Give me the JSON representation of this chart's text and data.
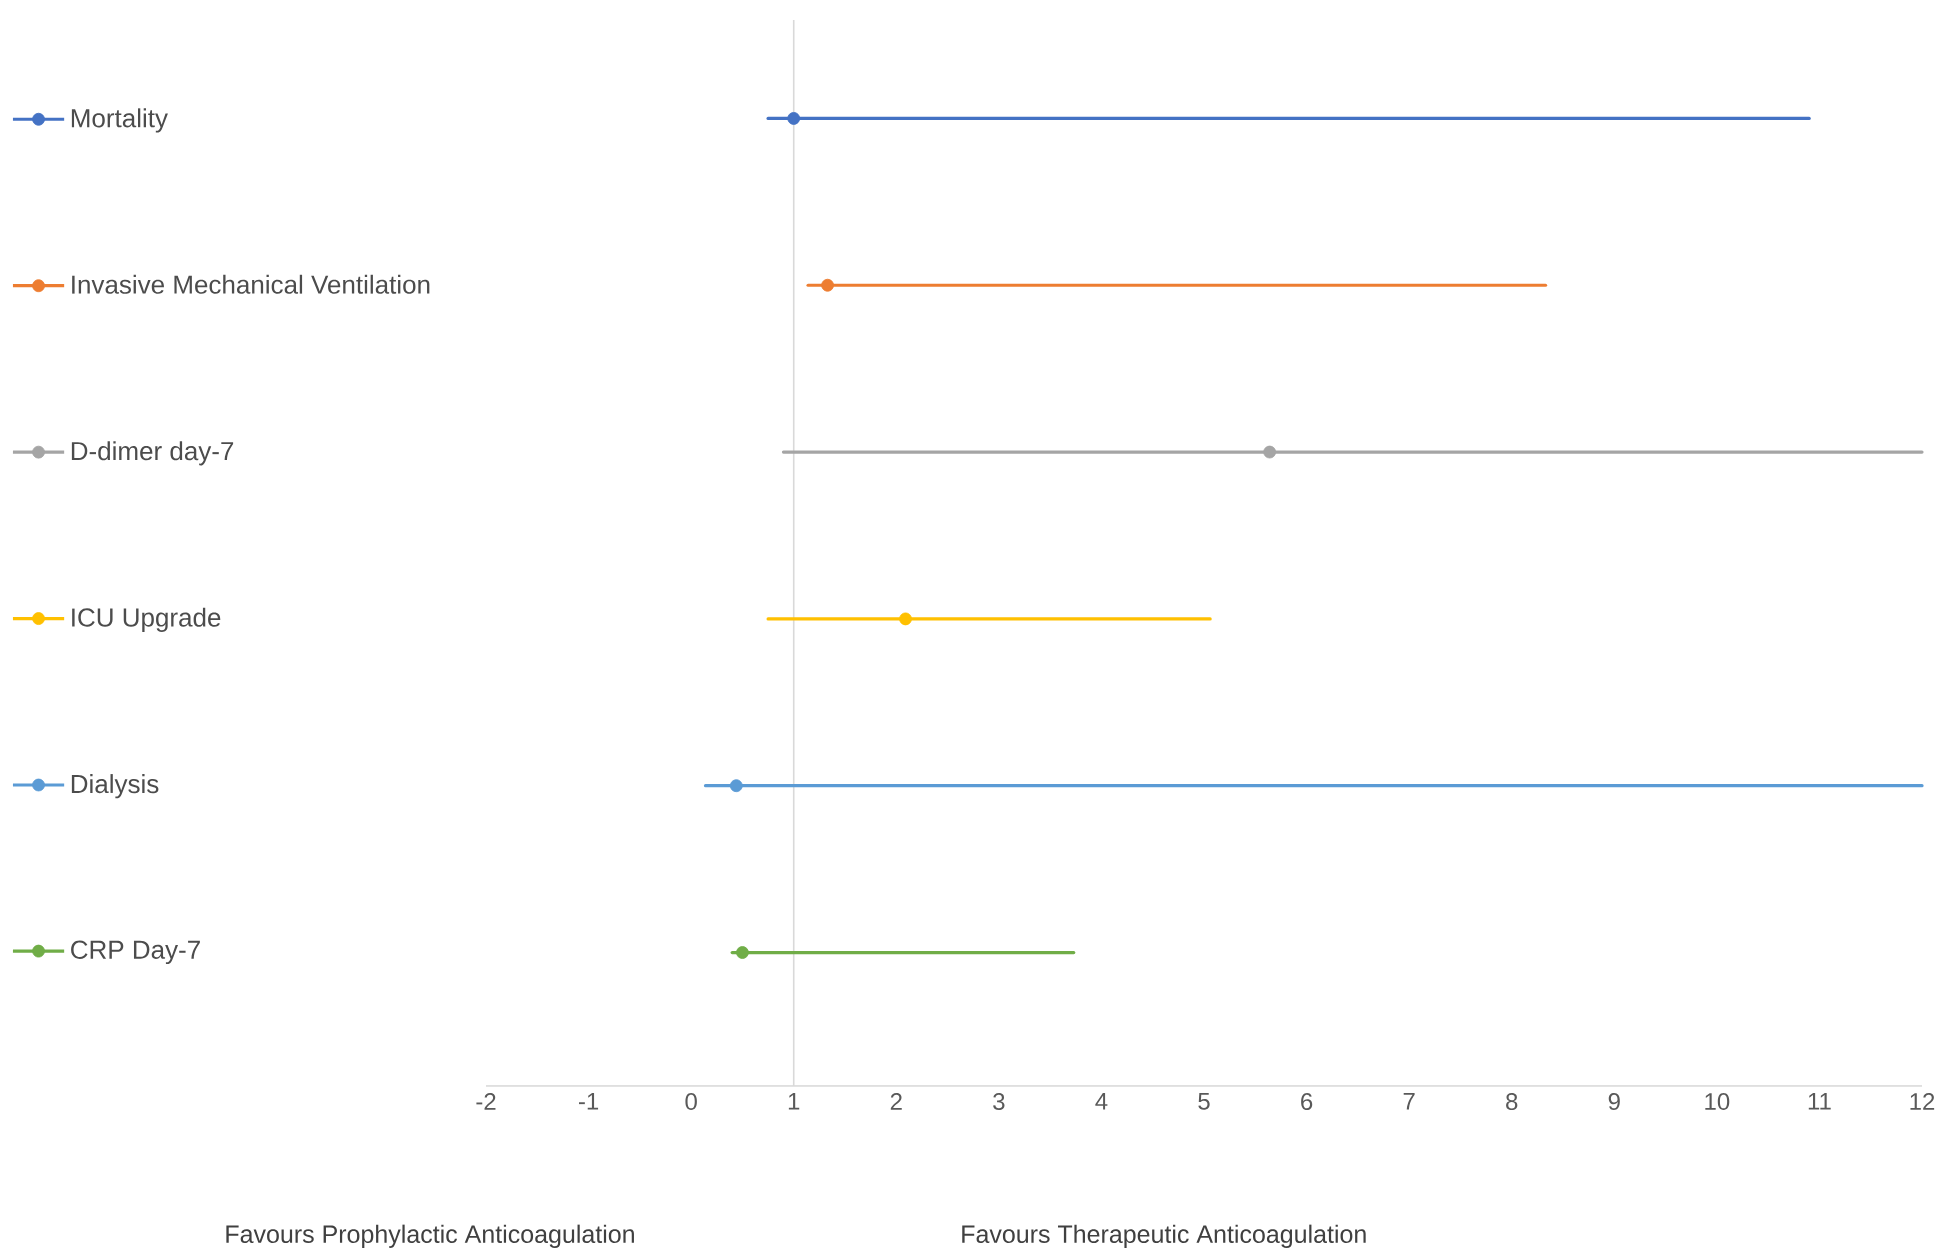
{
  "chart_data": {
    "type": "scatter",
    "orientation": "horizontal",
    "categories": [
      null,
      null,
      null,
      null,
      null,
      null
    ],
    "series": [
      {
        "name": "Mortality",
        "color": "#4472c4",
        "values": [
          1.0,
          null,
          null,
          null,
          null,
          null
        ],
        "errors": [
          [
            0.75,
            10.9
          ],
          null,
          null,
          null,
          null,
          null
        ]
      },
      {
        "name": "Invasive Mechanical Ventilation",
        "color": "#ed7d31",
        "values": [
          null,
          1.33,
          null,
          null,
          null,
          null
        ],
        "errors": [
          null,
          [
            1.14,
            8.33
          ],
          null,
          null,
          null,
          null
        ]
      },
      {
        "name": "D-dimer day-7",
        "color": "#a5a5a5",
        "values": [
          null,
          null,
          5.64,
          null,
          null,
          null
        ],
        "errors": [
          null,
          null,
          [
            0.9,
            12
          ],
          null,
          null,
          null
        ]
      },
      {
        "name": "ICU Upgrade",
        "color": "#ffc000",
        "values": [
          null,
          null,
          null,
          2.09,
          null,
          null
        ],
        "errors": [
          null,
          null,
          null,
          [
            0.75,
            5.06
          ],
          null,
          null
        ]
      },
      {
        "name": "Dialysis",
        "color": "#5b9bd5",
        "values": [
          null,
          null,
          null,
          null,
          0.44,
          null
        ],
        "errors": [
          null,
          null,
          null,
          null,
          [
            0.14,
            12
          ],
          null
        ]
      },
      {
        "name": "CRP Day-7",
        "color": "#70ad47",
        "values": [
          null,
          null,
          null,
          null,
          null,
          0.5
        ],
        "errors": [
          null,
          null,
          null,
          null,
          null,
          [
            0.4,
            3.73
          ]
        ]
      }
    ],
    "xlim": [
      -2,
      12
    ],
    "xticks": [
      -2,
      -1,
      0,
      1,
      2,
      3,
      4,
      5,
      6,
      7,
      8,
      9,
      10,
      11,
      12
    ],
    "ref_lines": [
      {
        "axis": "x",
        "value": 1,
        "color": "#d9d9d9"
      }
    ],
    "legend": "left",
    "marker": "circle",
    "grid": false,
    "annotations": [
      "Favours  Prophylactic Anticoagulation",
      "Favours Therapeutic Anticoagulation"
    ]
  }
}
